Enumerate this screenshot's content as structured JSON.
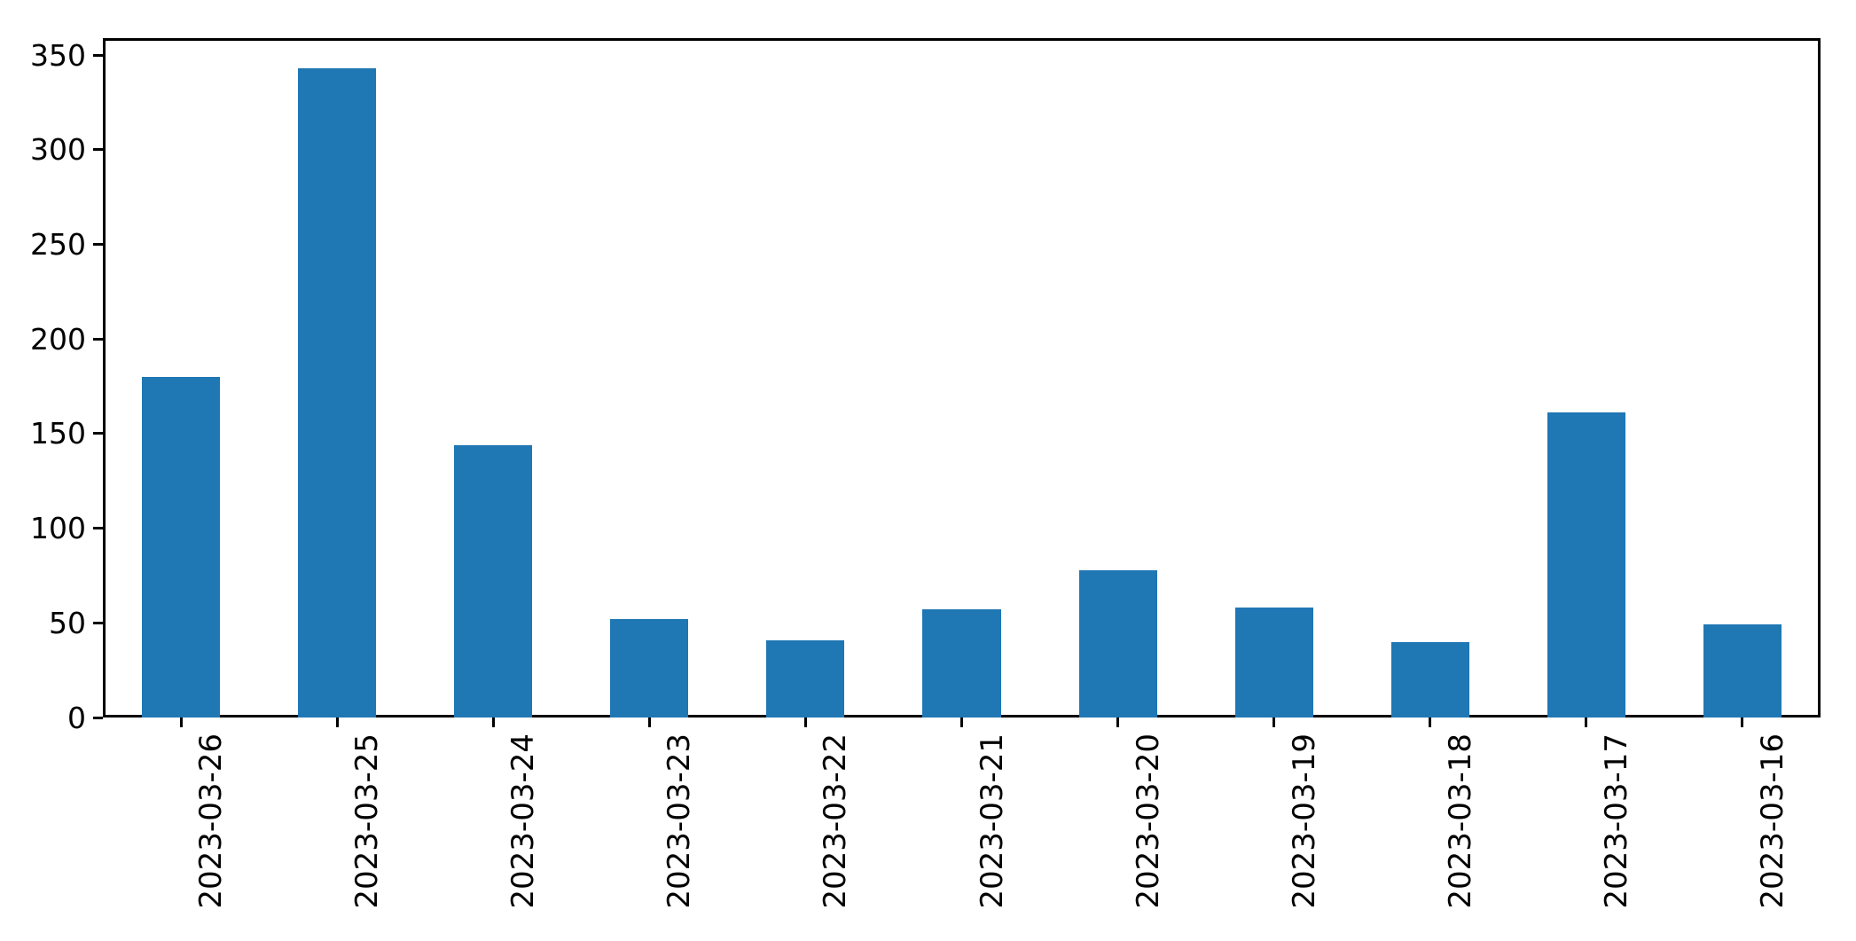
{
  "figure": {
    "background": "#ffffff"
  },
  "chart_data": {
    "type": "bar",
    "title": "",
    "xlabel": "",
    "ylabel": "",
    "categories": [
      "2023-03-26",
      "2023-03-25",
      "2023-03-24",
      "2023-03-23",
      "2023-03-22",
      "2023-03-21",
      "2023-03-20",
      "2023-03-19",
      "2023-03-18",
      "2023-03-17",
      "2023-03-16"
    ],
    "values": [
      180,
      343,
      144,
      52,
      41,
      57,
      78,
      58,
      40,
      161,
      49
    ],
    "yticks": [
      0,
      50,
      100,
      150,
      200,
      250,
      300,
      350
    ],
    "ylim": [
      0,
      359
    ],
    "bar_color": "#1f77b4",
    "axis_color": "#000000",
    "tick_label_color": "#000000",
    "x_tick_rotation_deg": 90,
    "grid": false,
    "legend_position": "none"
  }
}
